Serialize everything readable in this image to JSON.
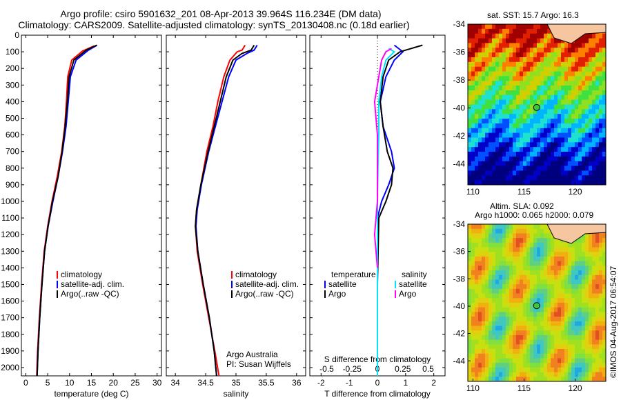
{
  "header": {
    "line1": "Argo profile: csiro 5901632_201 08-Apr-2013 39.964S 116.234E (DM data)",
    "line2": "Climatology: CARS2009. Satellite-adjusted climatology: synTS_20130408.nc (0.18d earlier)"
  },
  "colors": {
    "climatology": "#ff0000",
    "satellite": "#0000ff",
    "argo": "#000000",
    "sat_salinity": "#00e5ff",
    "argo_salinity": "#ff00ff"
  },
  "chart_data": [
    {
      "type": "line",
      "id": "temperature",
      "xlabel": "temperature (deg C)",
      "ylim": [
        2050,
        0
      ],
      "xlim": [
        -1,
        31
      ],
      "xticks": [
        0,
        5,
        10,
        15,
        20,
        25,
        30
      ],
      "yticks": [
        0,
        100,
        200,
        300,
        400,
        500,
        600,
        700,
        800,
        900,
        1000,
        1100,
        1200,
        1300,
        1400,
        1500,
        1600,
        1700,
        1800,
        1900,
        2000
      ],
      "legend": [
        "climatology",
        "satellite-adj. clim.",
        "Argo(..raw -QC)"
      ],
      "series": [
        {
          "name": "climatology",
          "points": [
            [
              15.6,
              65
            ],
            [
              13,
              95
            ],
            [
              10.5,
              150
            ],
            [
              9.6,
              250
            ],
            [
              9.3,
              400
            ],
            [
              8.9,
              550
            ],
            [
              8.2,
              700
            ],
            [
              7.2,
              850
            ],
            [
              6,
              1000
            ],
            [
              5,
              1150
            ],
            [
              4.2,
              1300
            ],
            [
              3.6,
              1500
            ],
            [
              3.1,
              1700
            ],
            [
              2.7,
              1900
            ],
            [
              2.5,
              2050
            ]
          ]
        },
        {
          "name": "satellite-adj. clim.",
          "points": [
            [
              16.3,
              60
            ],
            [
              14.3,
              90
            ],
            [
              11.5,
              150
            ],
            [
              10.2,
              250
            ],
            [
              9.7,
              400
            ],
            [
              9.2,
              550
            ],
            [
              8.4,
              700
            ],
            [
              7.4,
              850
            ],
            [
              6.2,
              1000
            ],
            [
              5.1,
              1150
            ],
            [
              4.3,
              1300
            ],
            [
              3.7,
              1500
            ],
            [
              3.2,
              1700
            ],
            [
              2.8,
              1900
            ],
            [
              2.6,
              2050
            ]
          ]
        },
        {
          "name": "Argo(..raw -QC)",
          "points": [
            [
              16.2,
              60
            ],
            [
              13.8,
              90
            ],
            [
              11,
              150
            ],
            [
              9.9,
              250
            ],
            [
              9.5,
              400
            ],
            [
              9,
              550
            ],
            [
              8.3,
              700
            ],
            [
              7.4,
              850
            ],
            [
              6.1,
              1000
            ],
            [
              5.1,
              1150
            ],
            [
              4.3,
              1300
            ],
            [
              3.7,
              1500
            ],
            [
              3.2,
              1700
            ],
            [
              2.8,
              1900
            ],
            [
              2.6,
              2050
            ]
          ]
        }
      ]
    },
    {
      "type": "line",
      "id": "salinity",
      "xlabel": "salinity",
      "ylim": [
        2050,
        0
      ],
      "xlim": [
        33.85,
        36.15
      ],
      "xticks": [
        34,
        34.5,
        35,
        35.5,
        36
      ],
      "legend": [
        "climatology",
        "satellite-adj. clim.",
        "Argo(..raw -QC)"
      ],
      "series": [
        {
          "name": "climatology",
          "points": [
            [
              35.15,
              60
            ],
            [
              35.1,
              90
            ],
            [
              35.02,
              100
            ],
            [
              34.9,
              150
            ],
            [
              34.8,
              250
            ],
            [
              34.7,
              400
            ],
            [
              34.62,
              550
            ],
            [
              34.52,
              700
            ],
            [
              34.42,
              900
            ],
            [
              34.35,
              1050
            ],
            [
              34.33,
              1150
            ],
            [
              34.36,
              1300
            ],
            [
              34.45,
              1500
            ],
            [
              34.55,
              1700
            ],
            [
              34.65,
              1900
            ],
            [
              34.72,
              2050
            ]
          ]
        },
        {
          "name": "satellite-adj. clim.",
          "points": [
            [
              35.35,
              60
            ],
            [
              35.3,
              90
            ],
            [
              35.18,
              110
            ],
            [
              35,
              150
            ],
            [
              34.88,
              250
            ],
            [
              34.77,
              400
            ],
            [
              34.66,
              550
            ],
            [
              34.55,
              700
            ],
            [
              34.43,
              900
            ],
            [
              34.36,
              1050
            ],
            [
              34.34,
              1150
            ],
            [
              34.37,
              1300
            ],
            [
              34.46,
              1500
            ],
            [
              34.56,
              1700
            ],
            [
              34.64,
              1900
            ],
            [
              34.68,
              2050
            ]
          ]
        },
        {
          "name": "Argo(..raw -QC)",
          "points": [
            [
              35.3,
              60
            ],
            [
              35.25,
              90
            ],
            [
              35.1,
              110
            ],
            [
              34.95,
              150
            ],
            [
              34.84,
              250
            ],
            [
              34.74,
              400
            ],
            [
              34.64,
              550
            ],
            [
              34.54,
              700
            ],
            [
              34.42,
              900
            ],
            [
              34.35,
              1050
            ],
            [
              34.33,
              1150
            ],
            [
              34.37,
              1300
            ],
            [
              34.46,
              1500
            ],
            [
              34.56,
              1700
            ],
            [
              34.64,
              1900
            ],
            [
              34.68,
              2050
            ]
          ]
        }
      ],
      "annotations": [
        "Argo Australia",
        "PI: Susan Wijffels"
      ]
    },
    {
      "type": "line",
      "id": "differences",
      "xlabel": "T difference from climatology",
      "xlabel_top": "S difference from climatology",
      "ylim": [
        2050,
        0
      ],
      "xlim": [
        -2.4,
        2.4
      ],
      "xticks": [
        -2,
        -1,
        0,
        1,
        2
      ],
      "xticks_top": [
        "-0.5",
        "-0.25",
        "0",
        "0.25",
        "0.5"
      ],
      "legend_title_temperature": "temperature",
      "legend_title_salinity": "salinity",
      "legend_temperature": [
        "satellite",
        "Argo"
      ],
      "legend_salinity": [
        "satellite",
        "Argo"
      ],
      "series": [
        {
          "name": "temperature satellite",
          "points": [
            [
              0.6,
              60
            ],
            [
              0.9,
              100
            ],
            [
              0.6,
              150
            ],
            [
              0.3,
              250
            ],
            [
              0.1,
              400
            ],
            [
              0.2,
              550
            ],
            [
              0.5,
              700
            ],
            [
              0.6,
              800
            ],
            [
              0.4,
              900
            ],
            [
              0.15,
              1000
            ],
            [
              0,
              1100
            ],
            [
              0,
              1500
            ],
            [
              0,
              2050
            ]
          ]
        },
        {
          "name": "temperature Argo",
          "points": [
            [
              1.6,
              60
            ],
            [
              0.8,
              100
            ],
            [
              0.4,
              150
            ],
            [
              0.2,
              250
            ],
            [
              0.1,
              400
            ],
            [
              0.2,
              550
            ],
            [
              0.35,
              700
            ],
            [
              0.55,
              800
            ],
            [
              0.5,
              900
            ],
            [
              0.3,
              1000
            ],
            [
              0.05,
              1100
            ],
            [
              0,
              1500
            ],
            [
              0,
              2050
            ]
          ]
        },
        {
          "name": "salinity satellite",
          "points": [
            [
              0.4,
              80
            ],
            [
              0.6,
              100
            ],
            [
              0.3,
              150
            ],
            [
              0.15,
              250
            ],
            [
              0.05,
              400
            ],
            [
              0.05,
              600
            ],
            [
              0.02,
              800
            ],
            [
              0,
              1000
            ],
            [
              0,
              1500
            ],
            [
              0,
              2050
            ]
          ]
        },
        {
          "name": "salinity Argo",
          "points": [
            [
              0.5,
              80
            ],
            [
              0.3,
              100
            ],
            [
              0.15,
              150
            ],
            [
              0.05,
              250
            ],
            [
              -0.1,
              400
            ],
            [
              0,
              600
            ],
            [
              0,
              800
            ],
            [
              0,
              1000
            ],
            [
              -0.1,
              1200
            ],
            [
              0,
              1400
            ]
          ]
        }
      ]
    },
    {
      "type": "heatmap",
      "id": "sst-map",
      "title": "sat. SST: 15.7  Argo: 16.3",
      "xlim": [
        109.5,
        123
      ],
      "ylim": [
        -45.5,
        -34
      ],
      "xticks": [
        110,
        115,
        120
      ],
      "yticks": [
        -34,
        -36,
        -38,
        -40,
        -42,
        -44
      ],
      "marker": {
        "lon": 116.234,
        "lat": -39.964
      }
    },
    {
      "type": "heatmap",
      "id": "sla-map",
      "title": "Altim. SLA: 0.092",
      "subtitle": "Argo h1000: 0.065  h2000: 0.079",
      "xlim": [
        109.5,
        123
      ],
      "ylim": [
        -45.5,
        -34
      ],
      "xticks": [
        110,
        115,
        120
      ],
      "yticks": [
        -34,
        -36,
        -38,
        -40,
        -42,
        -44
      ],
      "marker": {
        "lon": 116.234,
        "lat": -39.964
      }
    }
  ],
  "stamp": "©IMOS 04-Aug-2017 06:54:07"
}
